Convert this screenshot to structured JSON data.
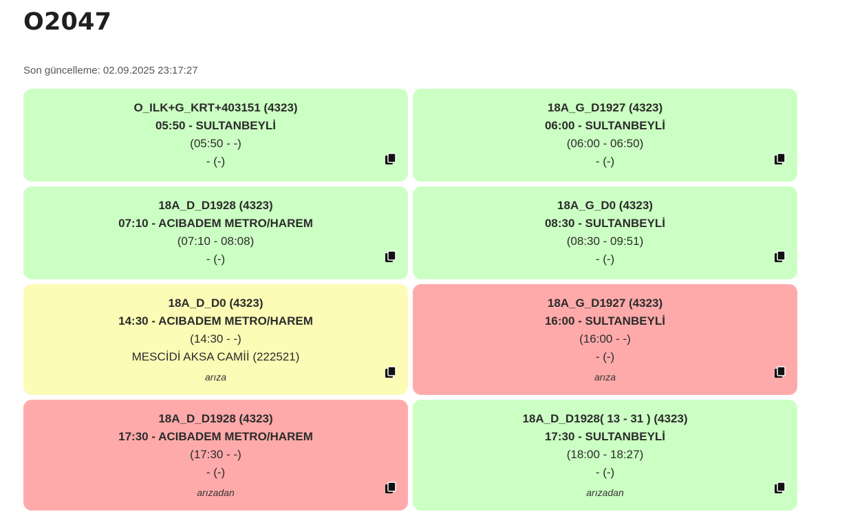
{
  "title": "O2047",
  "last_updated": "Son güncelleme: 02.09.2025 23:17:27",
  "cards": [
    {
      "status": "green",
      "code": "O_ILK+G_KRT+403151 (4323)",
      "route": "05:50 - SULTANBEYLİ",
      "times": "(05:50 - -)",
      "stop": "- (-)",
      "note": ""
    },
    {
      "status": "green",
      "code": "18A_G_D1927 (4323)",
      "route": "06:00 - SULTANBEYLİ",
      "times": "(06:00 - 06:50)",
      "stop": "- (-)",
      "note": ""
    },
    {
      "status": "green",
      "code": "18A_D_D1928 (4323)",
      "route": "07:10 - ACIBADEM METRO/HAREM",
      "times": "(07:10 - 08:08)",
      "stop": "- (-)",
      "note": ""
    },
    {
      "status": "green",
      "code": "18A_G_D0 (4323)",
      "route": "08:30 - SULTANBEYLİ",
      "times": "(08:30 - 09:51)",
      "stop": "- (-)",
      "note": ""
    },
    {
      "status": "yellow",
      "code": "18A_D_D0 (4323)",
      "route": "14:30 - ACIBADEM METRO/HAREM",
      "times": "(14:30 - -)",
      "stop": "MESCİDİ AKSA CAMİİ (222521)",
      "note": "arıza"
    },
    {
      "status": "red",
      "code": "18A_G_D1927 (4323)",
      "route": "16:00 - SULTANBEYLİ",
      "times": "(16:00 - -)",
      "stop": "- (-)",
      "note": "arıza"
    },
    {
      "status": "red",
      "code": "18A_D_D1928 (4323)",
      "route": "17:30 - ACIBADEM METRO/HAREM",
      "times": "(17:30 - -)",
      "stop": "- (-)",
      "note": "arızadan"
    },
    {
      "status": "green",
      "code": "18A_D_D1928( 13 - 31 ) (4323)",
      "route": "17:30 - SULTANBEYLİ",
      "times": "(18:00 - 18:27)",
      "stop": "- (-)",
      "note": "arızadan"
    }
  ],
  "icons": {
    "copy": "copy-icon"
  },
  "colors": {
    "green": "#ccffc4",
    "yellow": "#fcfcb6",
    "red": "#ffaaaa"
  }
}
